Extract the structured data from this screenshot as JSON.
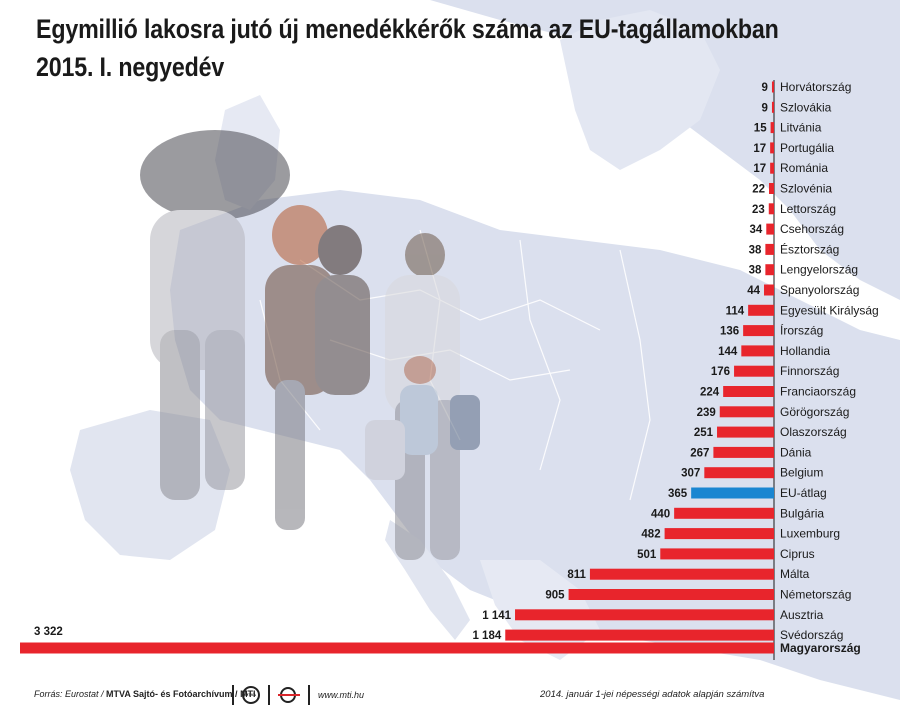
{
  "header": {
    "title_line1": "Egymillió lakosra jutó új menedékkérők száma az EU-tagállamokban",
    "title_line2": "2015. I. negyedév"
  },
  "footer": {
    "source_label": "Forrás: Eurostat /",
    "publisher": "MTVA Sajtó- és Fotóarchívum / MTI",
    "url": "www.mti.hu",
    "note": "2014. január 1-jei népességi adatok alapján számítva"
  },
  "colors": {
    "bar": "#e8252c",
    "highlight_bar": "#1a86d1",
    "map_sea": "#ffffff",
    "map_land": "#dbe0ee",
    "text": "#1a1a1a"
  },
  "chart_data": {
    "type": "bar",
    "orientation": "horizontal",
    "title": "Egymillió lakosra jutó új menedékkérők száma az EU-tagállamokban",
    "subtitle": "2015. I. negyedév",
    "xlabel": "",
    "ylabel": "",
    "xlim": [
      0,
      3322
    ],
    "grid": false,
    "categories": [
      "Horvátország",
      "Szlovákia",
      "Litvánia",
      "Portugália",
      "Románia",
      "Szlovénia",
      "Lettország",
      "Csehország",
      "Észtország",
      "Lengyelország",
      "Spanyolország",
      "Egyesült Királyság",
      "Írország",
      "Hollandia",
      "Finnország",
      "Franciaország",
      "Görögország",
      "Olaszország",
      "Dánia",
      "Belgium",
      "EU-átlag",
      "Bulgária",
      "Luxemburg",
      "Ciprus",
      "Málta",
      "Németország",
      "Ausztria",
      "Svédország",
      "Magyarország"
    ],
    "values": [
      9,
      9,
      15,
      17,
      17,
      22,
      23,
      34,
      38,
      38,
      44,
      114,
      136,
      144,
      176,
      224,
      239,
      251,
      267,
      307,
      365,
      440,
      482,
      501,
      811,
      905,
      1141,
      1184,
      3322
    ],
    "value_labels": [
      "9",
      "9",
      "15",
      "17",
      "17",
      "22",
      "23",
      "34",
      "38",
      "38",
      "44",
      "114",
      "136",
      "144",
      "176",
      "224",
      "239",
      "251",
      "267",
      "307",
      "365",
      "440",
      "482",
      "501",
      "811",
      "905",
      "1 141",
      "1 184",
      "3 322"
    ],
    "highlight": {
      "EU-átlag": "#1a86d1"
    },
    "bold_categories": [
      "Magyarország"
    ]
  }
}
